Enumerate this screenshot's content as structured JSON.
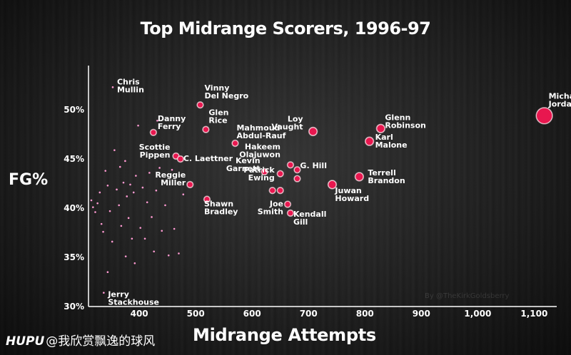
{
  "chart_data": {
    "type": "scatter",
    "title": "Top Midrange Scorers, 1996-97",
    "xlabel": "Midrange Attempts",
    "ylabel": "FG%",
    "xlim": [
      310,
      1140
    ],
    "ylim": [
      30,
      54.5
    ],
    "xticks": [
      400,
      500,
      600,
      700,
      800,
      900,
      1000,
      1100
    ],
    "xtick_labels": [
      "400",
      "500",
      "600",
      "700",
      "800",
      "900",
      "1,000",
      "1,100"
    ],
    "yticks": [
      30,
      35,
      40,
      45,
      50
    ],
    "ytick_labels": [
      "30%",
      "35%",
      "40%",
      "45%",
      "50%"
    ],
    "grid": false,
    "colors": {
      "point_fill": "#e8174f",
      "point_stroke": "#ffd6e0",
      "minor_point": "#ff9ad2",
      "text": "#ffffff"
    },
    "labeled_points": [
      {
        "label": "Michael\nJordan",
        "x": 1118,
        "y": 49.4
      },
      {
        "label": "Glenn\nRobinson",
        "x": 828,
        "y": 48.1
      },
      {
        "label": "Karl\nMalone",
        "x": 808,
        "y": 46.8
      },
      {
        "label": "Loy\nVaught",
        "x": 708,
        "y": 47.8
      },
      {
        "label": "Terrell\nBrandon",
        "x": 790,
        "y": 43.2
      },
      {
        "label": "Juwan\nHoward",
        "x": 742,
        "y": 42.4
      },
      {
        "label": "Vinny\nDel Negro",
        "x": 508,
        "y": 50.5
      },
      {
        "label": "Glen\nRice",
        "x": 518,
        "y": 48.0
      },
      {
        "label": "Mahmoud\nAbdul-Rauf",
        "x": 570,
        "y": 46.6
      },
      {
        "label": "Danny\nFerry",
        "x": 425,
        "y": 47.7
      },
      {
        "label": "Hakeem\nOlajuwon",
        "x": 668,
        "y": 44.4
      },
      {
        "label": "G. Hill",
        "x": 680,
        "y": 43.9
      },
      {
        "label": "Kevin\nGarnett",
        "x": 622,
        "y": 43.7
      },
      {
        "label": "Scottie\nPippen",
        "x": 465,
        "y": 45.3
      },
      {
        "label": "C. Laettner",
        "x": 473,
        "y": 45.0
      },
      {
        "label": "Patrick\nEwing",
        "x": 650,
        "y": 43.5
      },
      {
        "label": "Reggie\nMiller",
        "x": 490,
        "y": 42.4
      },
      {
        "label": "Shawn\nBradley",
        "x": 520,
        "y": 40.9
      },
      {
        "label": "Joe\nSmith",
        "x": 663,
        "y": 40.4
      },
      {
        "label": "Kendall\nGill",
        "x": 668,
        "y": 39.5
      },
      {
        "label": "",
        "x": 636,
        "y": 41.8
      },
      {
        "label": "",
        "x": 650,
        "y": 41.8
      },
      {
        "label": "",
        "x": 680,
        "y": 43.0
      }
    ],
    "minor_points": [
      {
        "label": "Chris\nMullin",
        "x": 353,
        "y": 52.3
      },
      {
        "label": "Jerry\nStackhouse",
        "x": 337,
        "y": 31.4
      },
      {
        "x": 315,
        "y": 40.8
      },
      {
        "x": 318,
        "y": 40.1
      },
      {
        "x": 322,
        "y": 39.6
      },
      {
        "x": 326,
        "y": 40.5
      },
      {
        "x": 330,
        "y": 41.6
      },
      {
        "x": 333,
        "y": 38.4
      },
      {
        "x": 336,
        "y": 37.6
      },
      {
        "x": 340,
        "y": 43.8
      },
      {
        "x": 344,
        "y": 42.3
      },
      {
        "x": 348,
        "y": 39.7
      },
      {
        "x": 352,
        "y": 36.6
      },
      {
        "x": 356,
        "y": 45.9
      },
      {
        "x": 360,
        "y": 41.9
      },
      {
        "x": 364,
        "y": 40.3
      },
      {
        "x": 368,
        "y": 38.2
      },
      {
        "x": 372,
        "y": 42.6
      },
      {
        "x": 375,
        "y": 44.8
      },
      {
        "x": 378,
        "y": 41.2
      },
      {
        "x": 381,
        "y": 39.0
      },
      {
        "x": 384,
        "y": 42.4
      },
      {
        "x": 387,
        "y": 36.9
      },
      {
        "x": 390,
        "y": 41.6
      },
      {
        "x": 394,
        "y": 43.3
      },
      {
        "x": 398,
        "y": 48.4
      },
      {
        "x": 402,
        "y": 38.0
      },
      {
        "x": 406,
        "y": 42.1
      },
      {
        "x": 410,
        "y": 36.9
      },
      {
        "x": 414,
        "y": 40.6
      },
      {
        "x": 418,
        "y": 43.6
      },
      {
        "x": 422,
        "y": 39.1
      },
      {
        "x": 426,
        "y": 35.6
      },
      {
        "x": 430,
        "y": 41.8
      },
      {
        "x": 436,
        "y": 44.1
      },
      {
        "x": 440,
        "y": 37.7
      },
      {
        "x": 446,
        "y": 40.3
      },
      {
        "x": 452,
        "y": 35.2
      },
      {
        "x": 458,
        "y": 43.9
      },
      {
        "x": 462,
        "y": 37.9
      },
      {
        "x": 470,
        "y": 35.4
      },
      {
        "x": 478,
        "y": 41.4
      },
      {
        "x": 376,
        "y": 35.1
      },
      {
        "x": 392,
        "y": 34.4
      },
      {
        "x": 344,
        "y": 33.5
      },
      {
        "x": 366,
        "y": 44.2
      },
      {
        "x": 432,
        "y": 48.9
      }
    ],
    "credit": "By @TheKirkGoldsberry"
  },
  "watermark": {
    "brand": "HUPU",
    "text": "@我欣赏飘逸的球风"
  }
}
